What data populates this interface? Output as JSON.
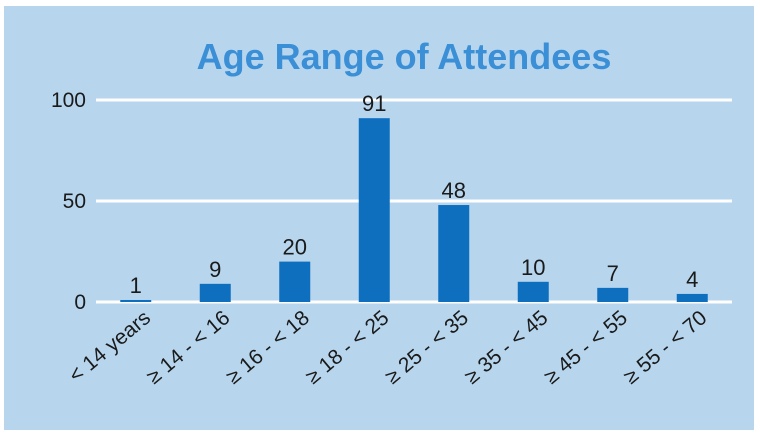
{
  "chart_data": {
    "type": "bar",
    "title": "Age Range of Attendees",
    "categories": [
      "< 14 years",
      "≥ 14 - < 16",
      "≥ 16 - < 18",
      "≥ 18 - < 25",
      "≥ 25 - < 35",
      "≥ 35 - < 45",
      "≥ 45 - < 55",
      "≥ 55 - < 70"
    ],
    "values": [
      1,
      9,
      20,
      91,
      48,
      10,
      7,
      4
    ],
    "yticks": [
      0,
      50,
      100
    ],
    "ylim": [
      0,
      100
    ],
    "grid": true,
    "data_labels": true,
    "colors": {
      "background": "#b7d6ee",
      "bar": "#0f6fbf",
      "gridline": "#ffffff",
      "title": "#3a8fd6",
      "text": "#1a1a1a"
    }
  }
}
